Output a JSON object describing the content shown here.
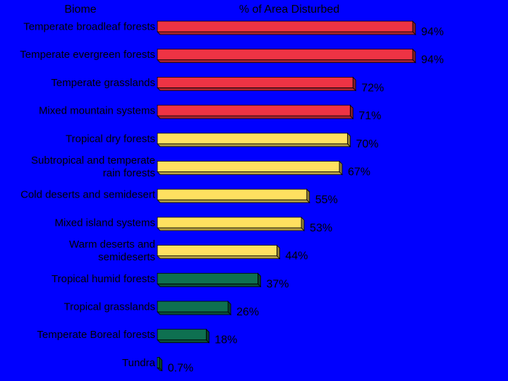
{
  "chart_data": {
    "type": "bar",
    "orientation": "horizontal",
    "header_left": "Biome",
    "header_right": "% of Area Disturbed",
    "xlim": [
      0,
      100
    ],
    "unit": "%",
    "colors": {
      "red": "#ee3344",
      "yellow": "#ffe060",
      "green": "#0e7050"
    },
    "bars": [
      {
        "label": [
          "Temperate broadleaf forests"
        ],
        "value": 94,
        "value_label": "94%",
        "color": "red"
      },
      {
        "label": [
          "Temperate evergreen forests"
        ],
        "value": 94,
        "value_label": "94%",
        "color": "red"
      },
      {
        "label": [
          "Temperate grasslands"
        ],
        "value": 72,
        "value_label": "72%",
        "color": "red"
      },
      {
        "label": [
          "Mixed mountain systems"
        ],
        "value": 71,
        "value_label": "71%",
        "color": "red"
      },
      {
        "label": [
          "Tropical dry forests"
        ],
        "value": 70,
        "value_label": "70%",
        "color": "yellow"
      },
      {
        "label": [
          "Subtropical and temperate",
          "rain forests"
        ],
        "value": 67,
        "value_label": "67%",
        "color": "yellow"
      },
      {
        "label": [
          "Cold deserts and semidesert"
        ],
        "value": 55,
        "value_label": "55%",
        "color": "yellow"
      },
      {
        "label": [
          "Mixed island systems"
        ],
        "value": 53,
        "value_label": "53%",
        "color": "yellow"
      },
      {
        "label": [
          "Warm deserts and",
          "semideserts"
        ],
        "value": 44,
        "value_label": "44%",
        "color": "yellow"
      },
      {
        "label": [
          "Tropical humid forests"
        ],
        "value": 37,
        "value_label": "37%",
        "color": "green"
      },
      {
        "label": [
          "Tropical grasslands"
        ],
        "value": 26,
        "value_label": "26%",
        "color": "green"
      },
      {
        "label": [
          "Temperate Boreal forests"
        ],
        "value": 18,
        "value_label": "18%",
        "color": "green"
      },
      {
        "label": [
          "Tundra"
        ],
        "value": 0.7,
        "value_label": "0.7%",
        "color": "green"
      }
    ]
  }
}
